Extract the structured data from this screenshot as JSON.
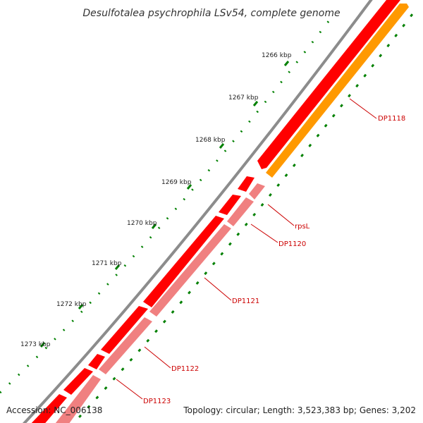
{
  "title": "Desulfotalea psychrophila LSv54, complete genome",
  "footer": {
    "accession": "Accession: NC_006138",
    "stats": "Topology: circular; Length: 3,523,383 bp; Genes: 3,202"
  },
  "kbp_labels": [
    "1266 kbp",
    "1267 kbp",
    "1268 kbp",
    "1269 kbp",
    "1270 kbp",
    "1271 kbp",
    "1272 kbp",
    "1273 kbp"
  ],
  "genes": [
    {
      "name": "DP1118",
      "strand": "reverse",
      "color": "#ff9900"
    },
    {
      "name": "rpsL",
      "strand": "reverse",
      "color": "#f08080"
    },
    {
      "name": "DP1120",
      "strand": "reverse",
      "color": "#f08080"
    },
    {
      "name": "DP1121",
      "strand": "reverse",
      "color": "#f08080"
    },
    {
      "name": "DP1122",
      "strand": "reverse",
      "color": "#f08080"
    },
    {
      "name": "DP1123",
      "strand": "reverse",
      "color": "#f08080"
    }
  ],
  "colors": {
    "backbone": "#8c8c8c",
    "forward_cds": "#ff0000",
    "reverse_cds": "#f08080",
    "orange_cds": "#ff9900",
    "tick_major": "#008000",
    "tick_minor": "#008000",
    "gene_label": "#cc0000",
    "title": "#333333"
  }
}
